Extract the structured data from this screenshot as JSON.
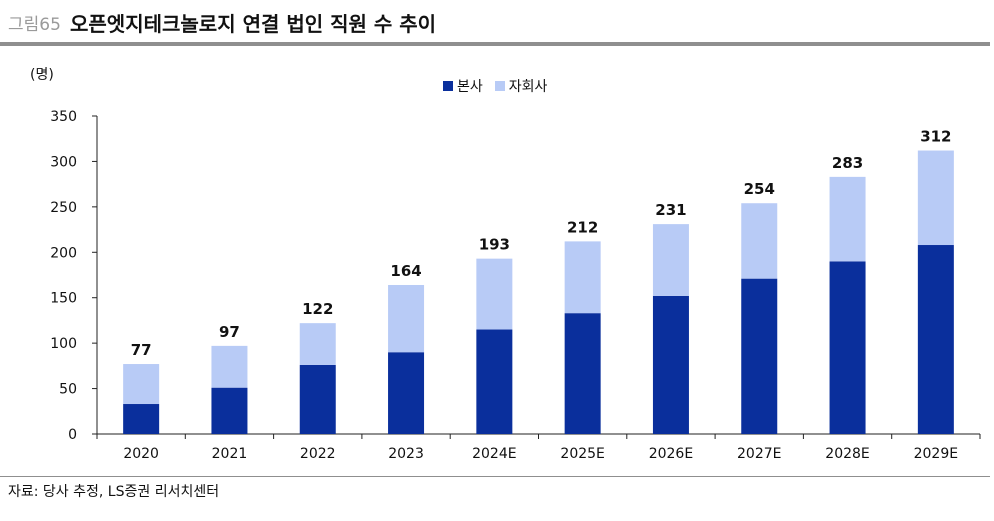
{
  "header": {
    "figure_label": "그림65",
    "title": "오픈엣지테크놀로지 연결 법인 직원 수 추이"
  },
  "footer": {
    "source": "자료: 당사 추정, LS증권 리서치센터"
  },
  "colors": {
    "headquarters": "#0a2f9c",
    "subsidiary": "#b8cbf6",
    "axis": "#222222",
    "rule": "#8f8f8f"
  },
  "chart_data": {
    "type": "bar",
    "stacked": true,
    "unit_label": "(명)",
    "categories": [
      "2020",
      "2021",
      "2022",
      "2023",
      "2024E",
      "2025E",
      "2026E",
      "2027E",
      "2028E",
      "2029E"
    ],
    "series": [
      {
        "name": "본사",
        "values": [
          33,
          51,
          76,
          90,
          115,
          133,
          152,
          171,
          190,
          208
        ]
      },
      {
        "name": "자회사",
        "values": [
          44,
          46,
          46,
          74,
          78,
          79,
          79,
          83,
          93,
          104
        ]
      }
    ],
    "totals": [
      77,
      97,
      122,
      164,
      193,
      212,
      231,
      254,
      283,
      312
    ],
    "y_ticks": [
      0,
      50,
      100,
      150,
      200,
      250,
      300,
      350
    ],
    "ylim": [
      0,
      350
    ],
    "legend_position": "top-center",
    "grid": false
  }
}
